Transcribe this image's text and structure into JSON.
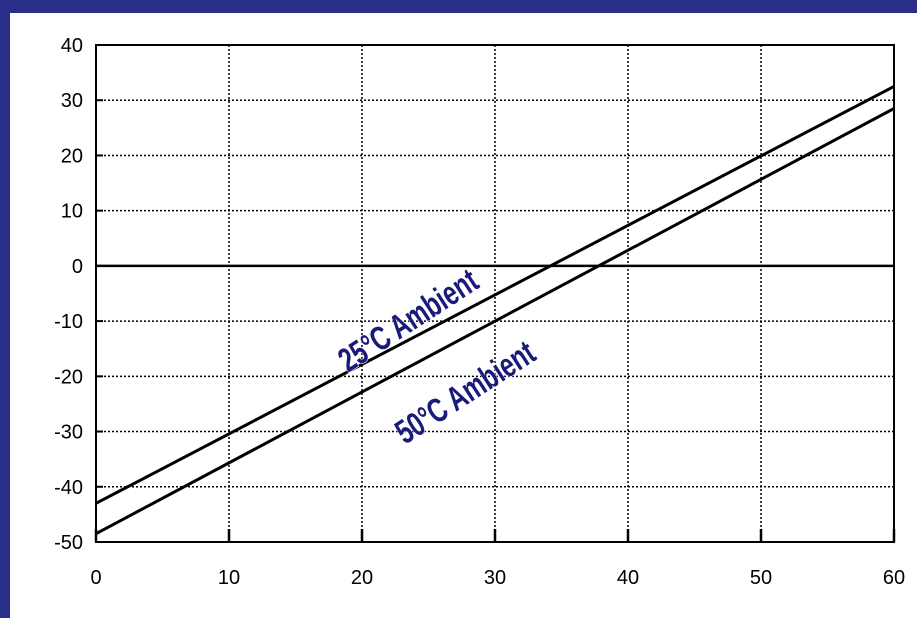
{
  "chart_data": {
    "type": "line",
    "title": "",
    "xlabel": "",
    "ylabel": "",
    "xlim": [
      0,
      60
    ],
    "ylim": [
      -50,
      40
    ],
    "xticks": [
      0,
      10,
      20,
      30,
      40,
      50,
      60
    ],
    "yticks": [
      -50,
      -40,
      -30,
      -20,
      -10,
      0,
      10,
      20,
      30,
      40
    ],
    "xtick_labels": [
      "0",
      "10",
      "20",
      "30",
      "40",
      "50",
      "60"
    ],
    "ytick_labels": [
      "-50",
      "-40",
      "-30",
      "-20",
      "-10",
      "0",
      "10",
      "20",
      "30",
      "40"
    ],
    "grid": true,
    "series": [
      {
        "name": "25°C Ambient",
        "x": [
          0,
          60
        ],
        "y": [
          -43,
          32.5
        ]
      },
      {
        "name": "50°C Ambient",
        "x": [
          0,
          60
        ],
        "y": [
          -48.5,
          28.5
        ]
      }
    ],
    "annotations": [
      "25°C Ambient",
      "50°C Ambient"
    ],
    "colors": {
      "frame": "#2c2e8c",
      "plot_bg": "#ffffff",
      "line": "#000000",
      "label": "#1a1a7a"
    }
  }
}
